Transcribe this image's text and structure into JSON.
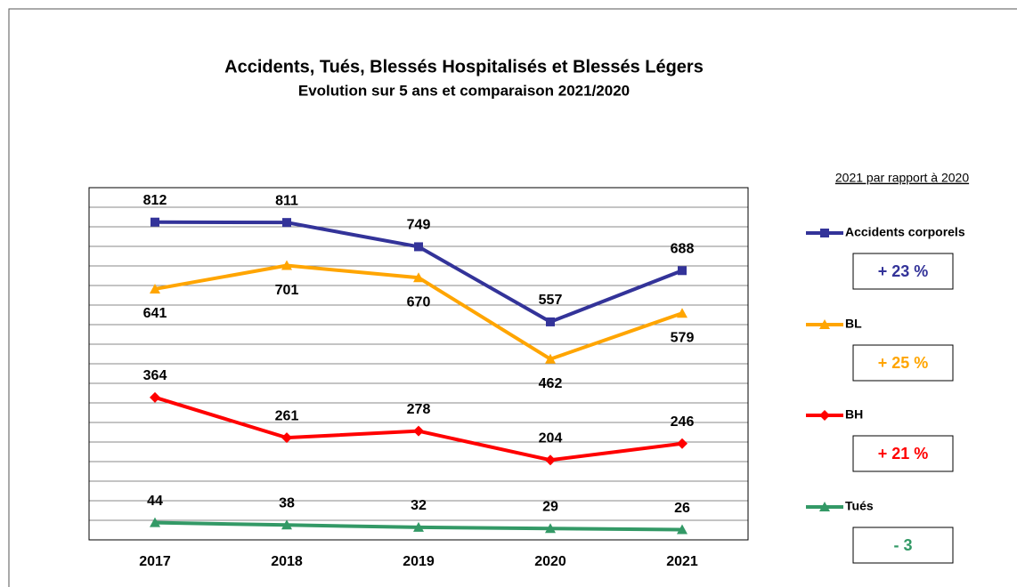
{
  "chart_data": {
    "type": "line",
    "title": "Accidents, Tués, Blessés Hospitalisés et Blessés Légers",
    "subtitle": "Evolution sur 5 ans et comparaison 2021/2020",
    "categories": [
      "2017",
      "2018",
      "2019",
      "2020",
      "2021"
    ],
    "series": [
      {
        "name": "Accidents corporels",
        "color": "#333399",
        "marker": "square",
        "values": [
          812,
          811,
          749,
          557,
          688
        ],
        "change": "+ 23 %"
      },
      {
        "name": "BL",
        "color": "#ffa500",
        "marker": "triangle",
        "values": [
          641,
          701,
          670,
          462,
          579
        ],
        "change": "+ 25 %"
      },
      {
        "name": "BH",
        "color": "#ff0000",
        "marker": "diamond",
        "values": [
          364,
          261,
          278,
          204,
          246
        ],
        "change": "+ 21 %"
      },
      {
        "name": "Tués",
        "color": "#339966",
        "marker": "triangle",
        "values": [
          44,
          38,
          32,
          29,
          26
        ],
        "change": "- 3"
      }
    ],
    "legend_title": "2021 par rapport à 2020",
    "ylim": [
      0,
      900
    ],
    "yticks": [
      0,
      50,
      100,
      150,
      200,
      250,
      300,
      350,
      400,
      450,
      500,
      550,
      600,
      650,
      700,
      750,
      800,
      850,
      900
    ],
    "grid": true
  }
}
